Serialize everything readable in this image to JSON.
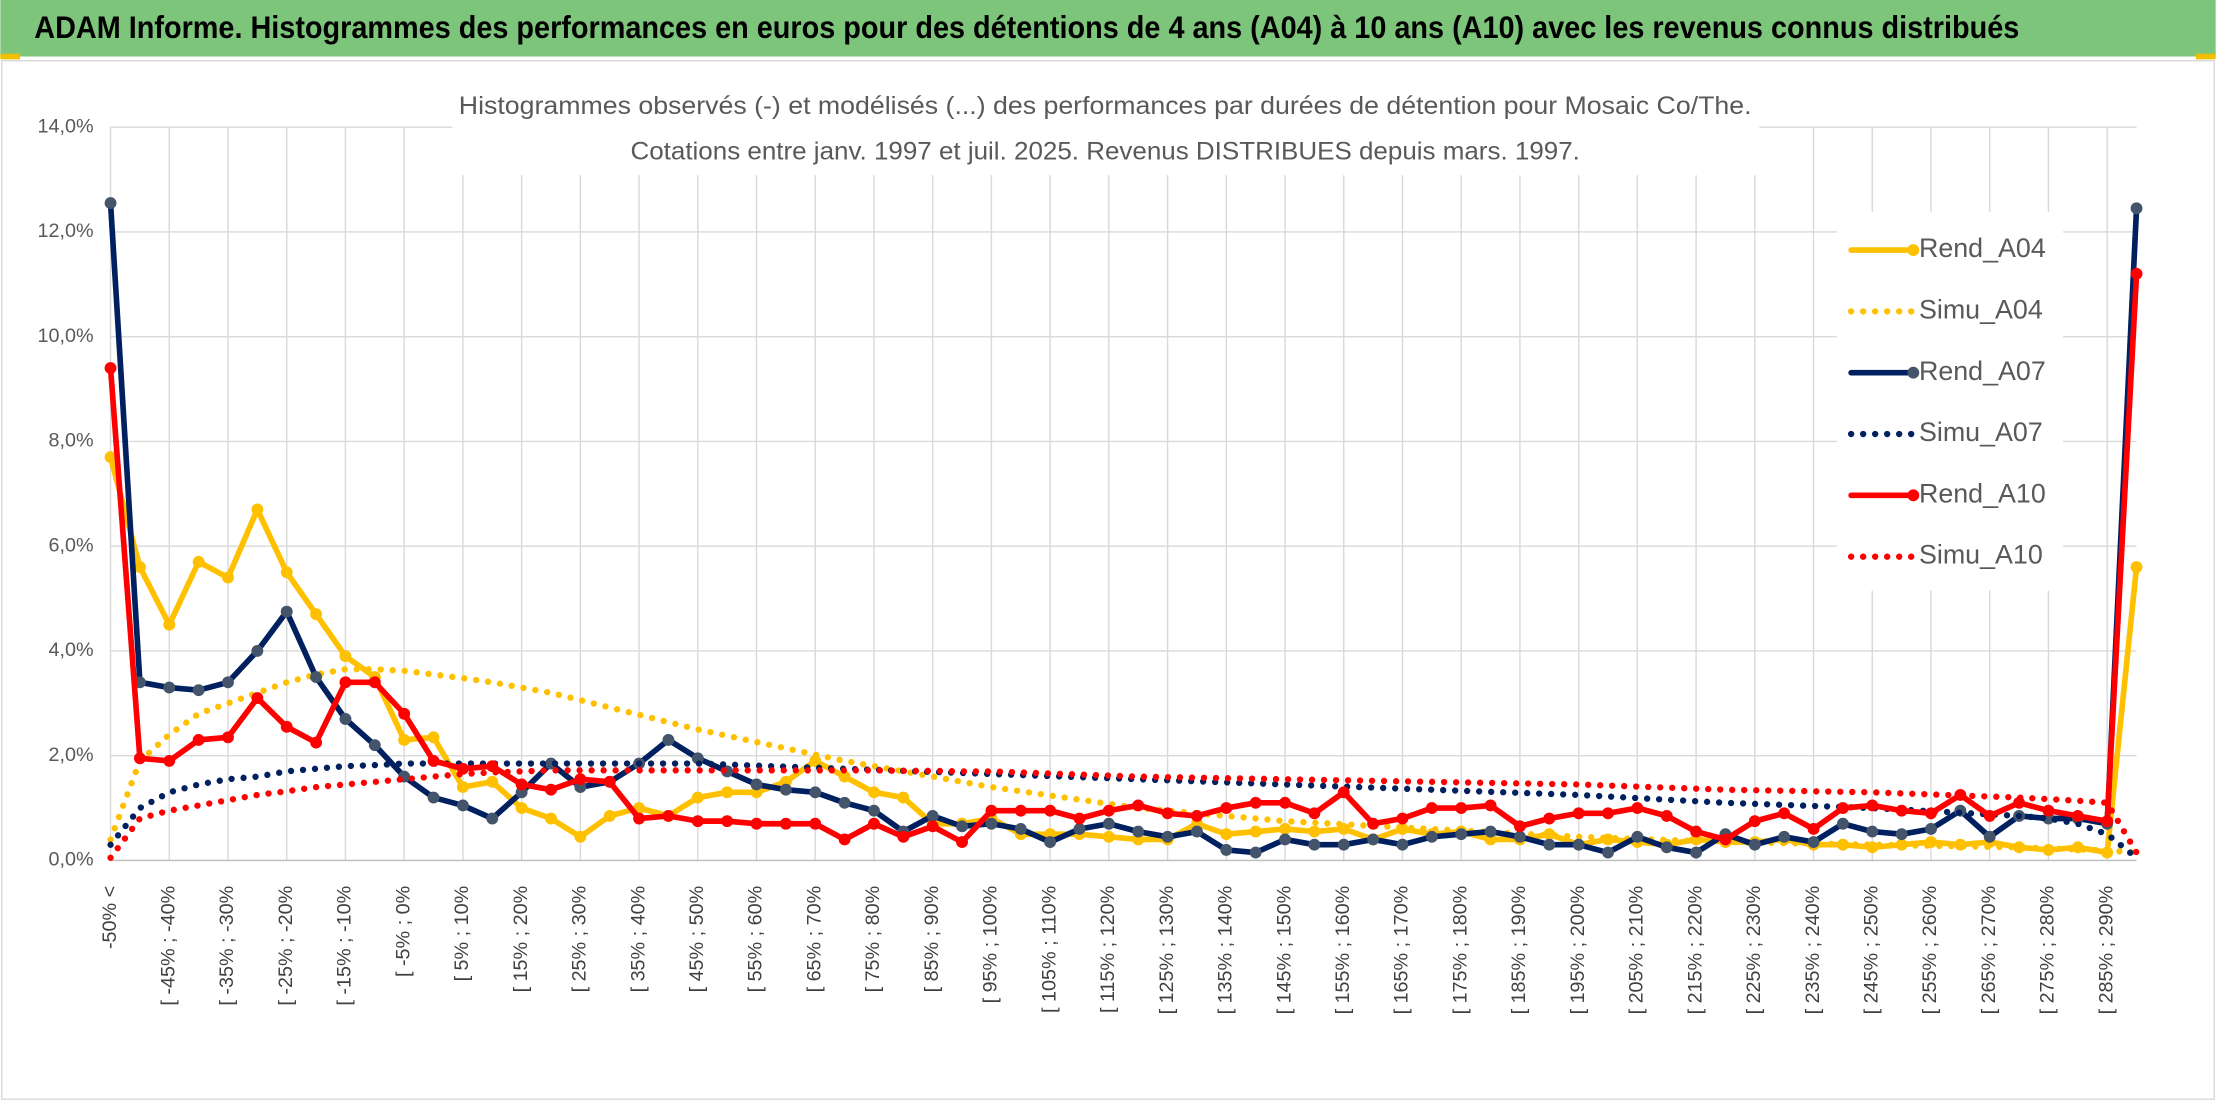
{
  "header": {
    "title": "ADAM Informe. Histogrammes des performances en euros pour des détentions de 4 ans (A04) à 10 ans (A10) avec les revenus connus distribués"
  },
  "chart_data": {
    "type": "line",
    "title": "Histogrammes observés (-) et modélisés (...) des performances par durées de détention pour Mosaic Co/The.",
    "subtitle": "Cotations entre janv. 1997 et juil. 2025. Revenus DISTRIBUES depuis mars. 1997.",
    "categories": [
      "-50% <",
      null,
      "[ -45% ; -40%",
      null,
      "[ -35% ; -30%",
      null,
      "[ -25% ; -20%",
      null,
      "[ -15% ; -10%",
      null,
      "[ -5% ; 0%",
      null,
      "[ 5% ; 10%",
      null,
      "[ 15% ; 20%",
      null,
      "[ 25% ; 30%",
      null,
      "[ 35% ; 40%",
      null,
      "[ 45% ; 50%",
      null,
      "[ 55% ; 60%",
      null,
      "[ 65% ; 70%",
      null,
      "[ 75% ; 80%",
      null,
      "[ 85% ; 90%",
      null,
      "[ 95% ; 100%",
      null,
      "[ 105% ; 110%",
      null,
      "[ 115% ; 120%",
      null,
      "[ 125% ; 130%",
      null,
      "[ 135% ; 140%",
      null,
      "[ 145% ; 150%",
      null,
      "[ 155% ; 160%",
      null,
      "[ 165% ; 170%",
      null,
      "[ 175% ; 180%",
      null,
      "[ 185% ; 190%",
      null,
      "[ 195% ; 200%",
      null,
      "[ 205% ; 210%",
      null,
      "[ 215% ; 220%",
      null,
      "[ 225% ; 230%",
      null,
      "[ 235% ; 240%",
      null,
      "[ 245% ; 250%",
      null,
      "[ 255% ; 260%",
      null,
      "[ 265% ; 270%",
      null,
      "[ 275% ; 280%",
      null,
      "[ 285% ; 290%",
      null
    ],
    "ylim": [
      0,
      14
    ],
    "yticks": [
      {
        "value": 0,
        "label": "0,0%"
      },
      {
        "value": 2,
        "label": "2,0%"
      },
      {
        "value": 4,
        "label": "4,0%"
      },
      {
        "value": 6,
        "label": "6,0%"
      },
      {
        "value": 8,
        "label": "8,0%"
      },
      {
        "value": 10,
        "label": "10,0%"
      },
      {
        "value": 12,
        "label": "12,0%"
      },
      {
        "value": 14,
        "label": "14,0%"
      }
    ],
    "grid": true,
    "legend": "right",
    "series": [
      {
        "name": "Rend_A04",
        "color": "#ffc000",
        "line_style": "solid",
        "markers": true,
        "values": [
          7.7,
          5.6,
          4.5,
          5.7,
          5.4,
          6.7,
          5.5,
          4.7,
          3.9,
          3.5,
          2.3,
          2.35,
          1.4,
          1.5,
          1.0,
          0.8,
          0.45,
          0.85,
          1.0,
          0.85,
          1.2,
          1.3,
          1.3,
          1.5,
          1.9,
          1.6,
          1.3,
          1.2,
          0.7,
          0.7,
          0.8,
          0.5,
          0.5,
          0.5,
          0.45,
          0.4,
          0.4,
          0.7,
          0.5,
          0.55,
          0.6,
          0.55,
          0.6,
          0.4,
          0.6,
          0.5,
          0.55,
          0.4,
          0.4,
          0.5,
          0.3,
          0.4,
          0.35,
          0.3,
          0.4,
          0.35,
          0.35,
          0.4,
          0.3,
          0.3,
          0.25,
          0.3,
          0.35,
          0.3,
          0.35,
          0.25,
          0.2,
          0.25,
          0.15,
          5.6
        ]
      },
      {
        "name": "Simu_A04",
        "color": "#ffc000",
        "line_style": "dotted",
        "markers": false,
        "values": [
          0.4,
          1.9,
          2.4,
          2.8,
          3.0,
          3.2,
          3.4,
          3.55,
          3.65,
          3.65,
          3.62,
          3.55,
          3.48,
          3.4,
          3.3,
          3.2,
          3.06,
          2.92,
          2.78,
          2.64,
          2.5,
          2.38,
          2.26,
          2.14,
          2.02,
          1.9,
          1.8,
          1.7,
          1.6,
          1.5,
          1.4,
          1.32,
          1.24,
          1.16,
          1.08,
          1.0,
          0.95,
          0.9,
          0.85,
          0.8,
          0.75,
          0.72,
          0.69,
          0.66,
          0.63,
          0.6,
          0.57,
          0.54,
          0.51,
          0.48,
          0.45,
          0.43,
          0.41,
          0.39,
          0.37,
          0.35,
          0.34,
          0.33,
          0.32,
          0.31,
          0.3,
          0.29,
          0.28,
          0.27,
          0.26,
          0.25,
          0.23,
          0.21,
          0.19,
          0.15
        ]
      },
      {
        "name": "Rend_A07",
        "color": "#002060",
        "line_style": "solid",
        "markers": true,
        "values": [
          12.55,
          3.4,
          3.3,
          3.25,
          3.4,
          4.0,
          4.75,
          3.5,
          2.7,
          2.2,
          1.6,
          1.2,
          1.05,
          0.8,
          1.3,
          1.85,
          1.4,
          1.5,
          1.85,
          2.3,
          1.95,
          1.7,
          1.45,
          1.35,
          1.3,
          1.1,
          0.95,
          0.55,
          0.85,
          0.65,
          0.7,
          0.6,
          0.35,
          0.6,
          0.7,
          0.55,
          0.45,
          0.55,
          0.2,
          0.15,
          0.4,
          0.3,
          0.3,
          0.4,
          0.3,
          0.45,
          0.5,
          0.55,
          0.45,
          0.3,
          0.3,
          0.15,
          0.45,
          0.25,
          0.15,
          0.5,
          0.3,
          0.45,
          0.35,
          0.7,
          0.55,
          0.5,
          0.6,
          0.95,
          0.45,
          0.85,
          0.8,
          0.8,
          0.7,
          12.45
        ]
      },
      {
        "name": "Simu_A07",
        "color": "#002060",
        "line_style": "dotted",
        "markers": false,
        "values": [
          0.3,
          1.0,
          1.3,
          1.45,
          1.55,
          1.6,
          1.7,
          1.75,
          1.8,
          1.82,
          1.85,
          1.85,
          1.85,
          1.85,
          1.85,
          1.85,
          1.85,
          1.85,
          1.85,
          1.85,
          1.85,
          1.83,
          1.81,
          1.79,
          1.77,
          1.75,
          1.73,
          1.71,
          1.69,
          1.67,
          1.65,
          1.63,
          1.61,
          1.59,
          1.57,
          1.55,
          1.53,
          1.51,
          1.49,
          1.47,
          1.45,
          1.43,
          1.41,
          1.39,
          1.37,
          1.35,
          1.33,
          1.31,
          1.29,
          1.27,
          1.25,
          1.22,
          1.19,
          1.16,
          1.13,
          1.1,
          1.08,
          1.06,
          1.04,
          1.02,
          1.0,
          0.97,
          0.94,
          0.91,
          0.88,
          0.85,
          0.8,
          0.7,
          0.5,
          0.05
        ]
      },
      {
        "name": "Rend_A10",
        "color": "#ff0000",
        "line_style": "solid",
        "markers": true,
        "values": [
          9.4,
          1.95,
          1.9,
          2.3,
          2.35,
          3.1,
          2.55,
          2.25,
          3.4,
          3.4,
          2.8,
          1.9,
          1.75,
          1.8,
          1.45,
          1.35,
          1.55,
          1.5,
          0.8,
          0.85,
          0.75,
          0.75,
          0.7,
          0.7,
          0.7,
          0.4,
          0.7,
          0.45,
          0.65,
          0.35,
          0.95,
          0.95,
          0.95,
          0.8,
          0.95,
          1.05,
          0.9,
          0.85,
          1.0,
          1.1,
          1.1,
          0.9,
          1.3,
          0.7,
          0.8,
          1.0,
          1.0,
          1.05,
          0.65,
          0.8,
          0.9,
          0.9,
          1.0,
          0.85,
          0.55,
          0.4,
          0.75,
          0.9,
          0.6,
          1.0,
          1.05,
          0.95,
          0.9,
          1.25,
          0.85,
          1.1,
          0.95,
          0.85,
          0.75,
          11.2
        ]
      },
      {
        "name": "Simu_A10",
        "color": "#ff0000",
        "line_style": "dotted",
        "markers": false,
        "values": [
          0.05,
          0.8,
          0.95,
          1.05,
          1.15,
          1.25,
          1.32,
          1.4,
          1.45,
          1.5,
          1.55,
          1.6,
          1.65,
          1.68,
          1.7,
          1.72,
          1.72,
          1.72,
          1.72,
          1.72,
          1.72,
          1.72,
          1.72,
          1.72,
          1.72,
          1.72,
          1.72,
          1.71,
          1.71,
          1.7,
          1.7,
          1.68,
          1.66,
          1.64,
          1.62,
          1.6,
          1.59,
          1.58,
          1.57,
          1.56,
          1.55,
          1.54,
          1.53,
          1.52,
          1.51,
          1.5,
          1.49,
          1.48,
          1.47,
          1.46,
          1.45,
          1.43,
          1.41,
          1.39,
          1.37,
          1.35,
          1.34,
          1.33,
          1.32,
          1.31,
          1.3,
          1.28,
          1.26,
          1.24,
          1.22,
          1.2,
          1.17,
          1.14,
          1.1,
          0.15
        ]
      }
    ]
  }
}
